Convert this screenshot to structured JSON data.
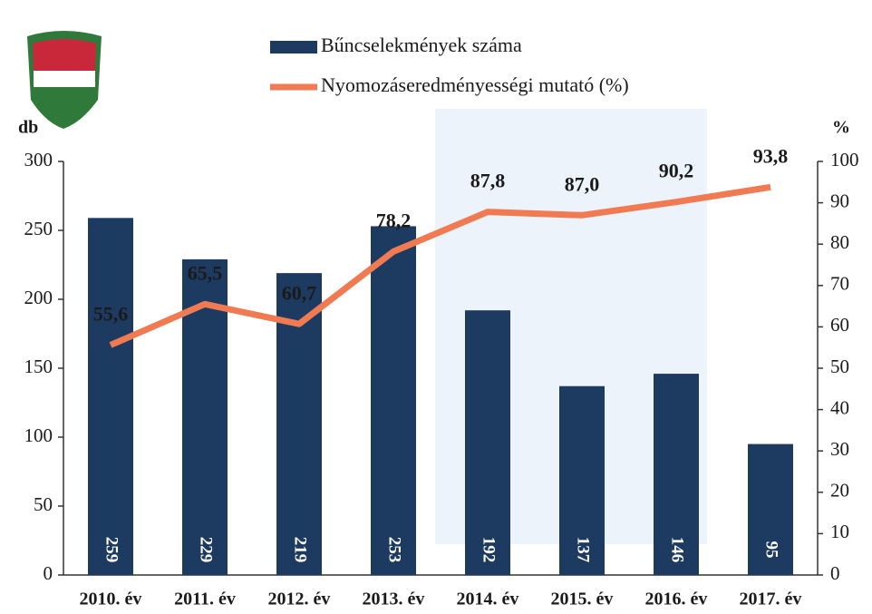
{
  "chart_data": {
    "type": "bar-line",
    "categories": [
      "2010. év",
      "2011. év",
      "2012. év",
      "2013. év",
      "2014. év",
      "2015. év",
      "2016. év",
      "2017. év"
    ],
    "series": [
      {
        "name": "Bűncselekmények száma",
        "color": "#1d3b61",
        "type": "bar",
        "values": [
          259,
          229,
          219,
          253,
          192,
          137,
          146,
          95
        ]
      },
      {
        "name": "Nyomozáseredményességi mutató (%)",
        "color": "#f07a52",
        "type": "line",
        "axis": "y2",
        "values": [
          55.6,
          65.5,
          60.7,
          78.2,
          87.8,
          87.0,
          90.2,
          93.8
        ],
        "value_labels": [
          "55,6",
          "65,5",
          "60,7",
          "78,2",
          "87,8",
          "87,0",
          "90,2",
          "93,8"
        ]
      }
    ],
    "y_label": "db",
    "y2_label": "%",
    "ylim": [
      0,
      300
    ],
    "yticks": [
      0,
      50,
      100,
      150,
      200,
      250,
      300
    ],
    "y2lim": [
      0,
      100
    ],
    "y2ticks": [
      0,
      10,
      20,
      30,
      40,
      50,
      60,
      70,
      80,
      90,
      100
    ],
    "legend": "top"
  }
}
